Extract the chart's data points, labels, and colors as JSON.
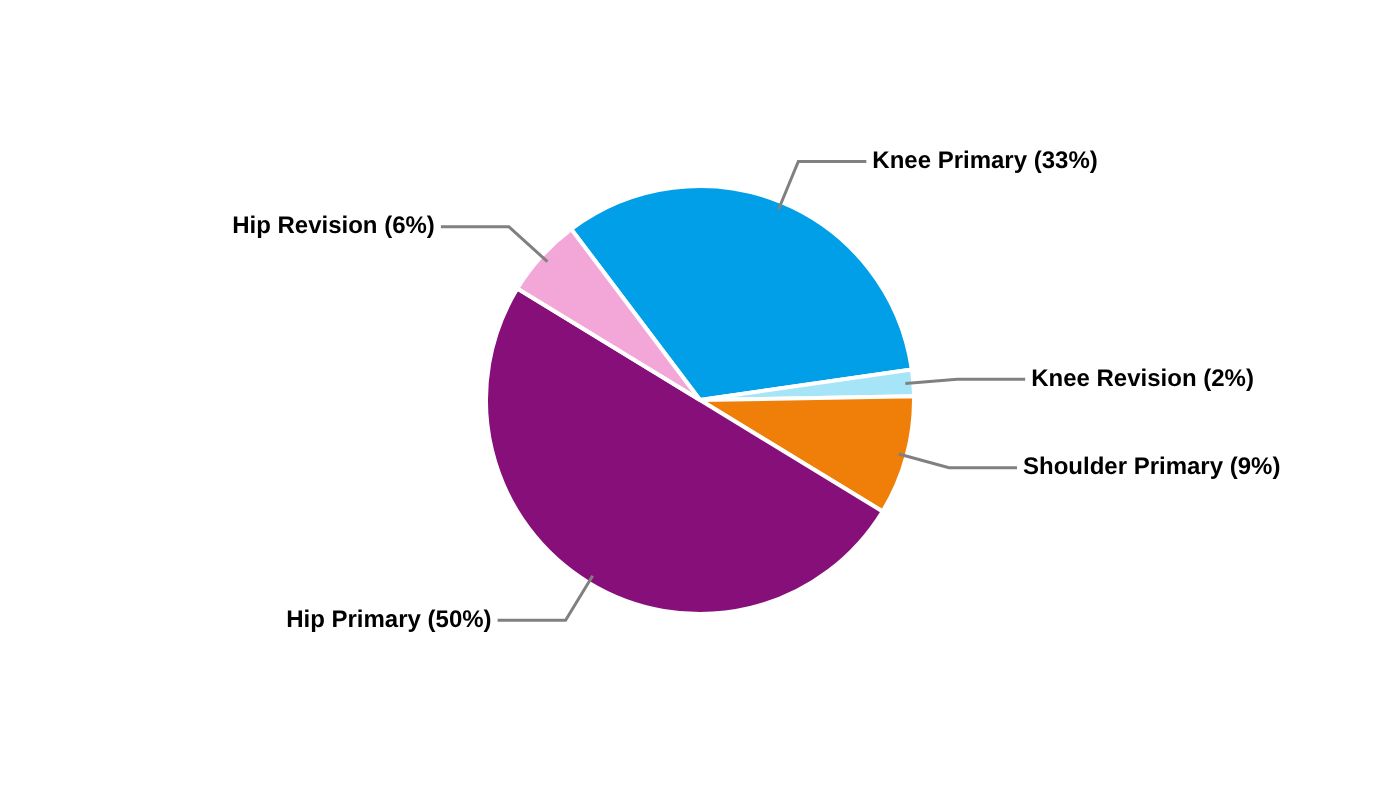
{
  "chart_data": {
    "type": "pie",
    "categories": [
      "Knee Primary (33%)",
      "Knee Revision (2%)",
      "Shoulder Primary (9%)",
      "Hip Primary (50%)",
      "Hip Revision (6%)"
    ],
    "values": [
      33,
      2,
      9,
      50,
      6
    ],
    "colors": [
      "#009fe8",
      "#a6e4f7",
      "#f07f09",
      "#870f7a",
      "#f2a7d8"
    ],
    "legend": false
  }
}
